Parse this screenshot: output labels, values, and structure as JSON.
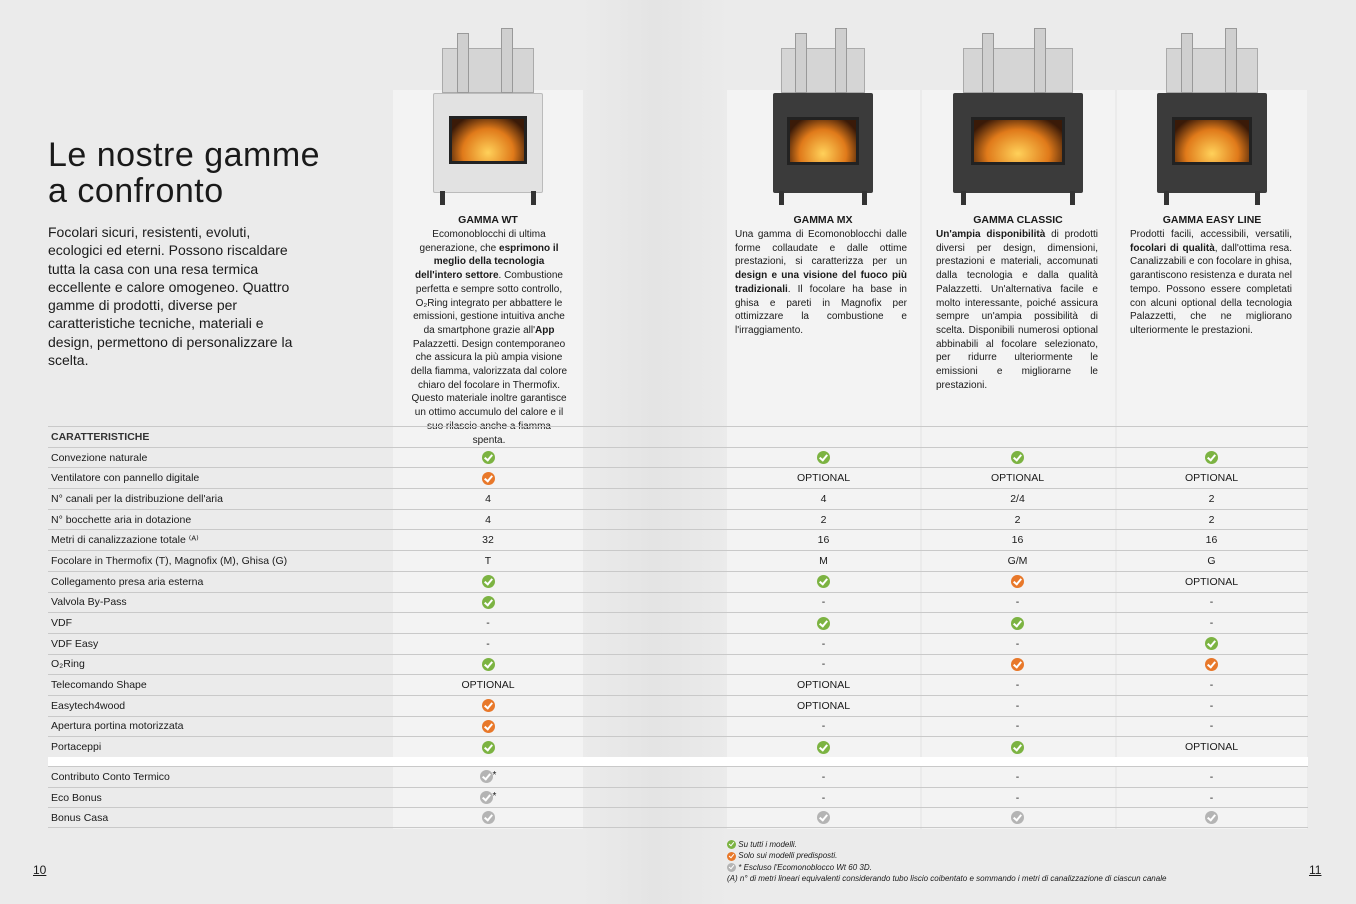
{
  "page": {
    "title": "Le nostre gamme a confronto",
    "intro": "Focolari sicuri, resistenti, evoluti, ecologici ed eterni. Possono riscaldare tutta la casa con una resa termica eccellente e calore omogeneo. Quattro gamme di prodotti, diverse per caratteristiche tecniche, materiali e design, permettono di personalizzare la scelta.",
    "page_left": "10",
    "page_right": "11"
  },
  "colors": {
    "green_check": "#7cb342",
    "orange_check": "#e8782a",
    "grey_check": "#b4b4b4"
  },
  "products": [
    {
      "name": "GAMMA WT",
      "image": "fireplace-wt-corner-glass",
      "desc": [
        {
          "t": "Ecomonoblocchi di ultima generazione, che "
        },
        {
          "t": "esprimono il meglio della tecnologia dell'intero settore",
          "b": true
        },
        {
          "t": ". Combustione perfetta e sempre sotto controllo, O₂Ring integrato per abbattere le emissioni, gestione intuitiva anche da smartphone grazie all'"
        },
        {
          "t": "App",
          "b": true
        },
        {
          "t": " Palazzetti. Design contemporaneo che assicura la più ampia visione della fiamma, valorizzata dal colore chiaro del focolare in Thermofix. Questo materiale inoltre garantisce un ottimo accumulo del calore e il suo rilascio anche a fiamma spenta."
        }
      ]
    },
    {
      "name": "GAMMA MX",
      "image": "fireplace-mx",
      "desc": [
        {
          "t": "Una gamma di Ecomonoblocchi dalle forme collaudate e dalle ottime prestazioni, si caratterizza per un "
        },
        {
          "t": "design e una visione del fuoco più tradizionali",
          "b": true
        },
        {
          "t": ". Il focolare ha base in ghisa e pareti in Magnofix per ottimizzare la combustione e l'irraggiamento."
        }
      ]
    },
    {
      "name": "GAMMA CLASSIC",
      "image": "fireplace-classic",
      "desc": [
        {
          "t": "Un'ampia disponibilità",
          "b": true
        },
        {
          "t": " di prodotti diversi per design, dimensioni, prestazioni e materiali, accomunati dalla tecnologia e dalla qualità Palazzetti. Un'alternativa facile e molto interessante, poiché assicura sempre un'ampia possibilità di scelta. Disponibili numerosi optional abbinabili al focolare selezionato, per ridurre ulteriormente le emissioni e migliorarne le prestazioni."
        }
      ]
    },
    {
      "name": "GAMMA EASY LINE",
      "image": "fireplace-easy-line",
      "desc": [
        {
          "t": "Prodotti facili, accessibili, versatili, "
        },
        {
          "t": "focolari di qualità",
          "b": true
        },
        {
          "t": ", dall'ottima resa. Canalizzabili e con focolare in ghisa, garantiscono resistenza e durata nel tempo. Possono essere completati con alcuni optional della tecnologia Palazzetti, che ne migliorano ulteriormente le prestazioni."
        }
      ]
    }
  ],
  "table": {
    "header": "CARATTERISTICHE",
    "rows": [
      {
        "label": "Convezione naturale",
        "values": [
          "green",
          "green",
          "green",
          "green"
        ]
      },
      {
        "label": "Ventilatore con pannello digitale",
        "values": [
          "orange",
          "OPTIONAL",
          "OPTIONAL",
          "OPTIONAL"
        ]
      },
      {
        "label": "N° canali per la distribuzione dell'aria",
        "values": [
          "4",
          "4",
          "2/4",
          "2"
        ]
      },
      {
        "label": "N° bocchette aria in dotazione",
        "values": [
          "4",
          "2",
          "2",
          "2"
        ]
      },
      {
        "label": "Metri di canalizzazione totale ⁽ᴬ⁾",
        "values": [
          "32",
          "16",
          "16",
          "16"
        ]
      },
      {
        "label": "Focolare in Thermofix (T), Magnofix (M), Ghisa (G)",
        "values": [
          "T",
          "M",
          "G/M",
          "G"
        ]
      },
      {
        "label": "Collegamento presa aria esterna",
        "values": [
          "green",
          "green",
          "orange",
          "OPTIONAL"
        ]
      },
      {
        "label": "Valvola By-Pass",
        "values": [
          "green",
          "-",
          "-",
          "-"
        ]
      },
      {
        "label": "VDF",
        "values": [
          "-",
          "green",
          "green",
          "-"
        ]
      },
      {
        "label": "VDF Easy",
        "values": [
          "-",
          "-",
          "-",
          "green"
        ]
      },
      {
        "label": "O₂Ring",
        "values": [
          "green",
          "-",
          "orange",
          "orange"
        ]
      },
      {
        "label": "Telecomando Shape",
        "values": [
          "OPTIONAL",
          "OPTIONAL",
          "-",
          "-"
        ]
      },
      {
        "label": "Easytech4wood",
        "values": [
          "orange",
          "OPTIONAL",
          "-",
          "-"
        ]
      },
      {
        "label": "Apertura portina motorizzata",
        "values": [
          "orange",
          "-",
          "-",
          "-"
        ]
      },
      {
        "label": "Portaceppi",
        "values": [
          "green",
          "green",
          "green",
          "OPTIONAL"
        ]
      }
    ],
    "bonus_rows": [
      {
        "label": "Contributo Conto Termico",
        "values": [
          "grey*",
          "-",
          "-",
          "-"
        ]
      },
      {
        "label": "Eco Bonus",
        "values": [
          "grey*",
          "-",
          "-",
          "-"
        ]
      },
      {
        "label": "Bonus Casa",
        "values": [
          "grey",
          "grey",
          "grey",
          "grey"
        ]
      }
    ]
  },
  "notes": [
    {
      "icon": "green",
      "text": "Su tutti i modelli."
    },
    {
      "icon": "orange",
      "text": "Solo sui modelli predisposti."
    },
    {
      "icon": "grey",
      "text": "* Escluso l'Ecomonoblocco Wt 60 3D."
    },
    {
      "icon": "",
      "text": "(A) n° di metri lineari equivalenti considerando tubo liscio coibentato e sommando i metri di canalizzazione di ciascun canale"
    }
  ]
}
